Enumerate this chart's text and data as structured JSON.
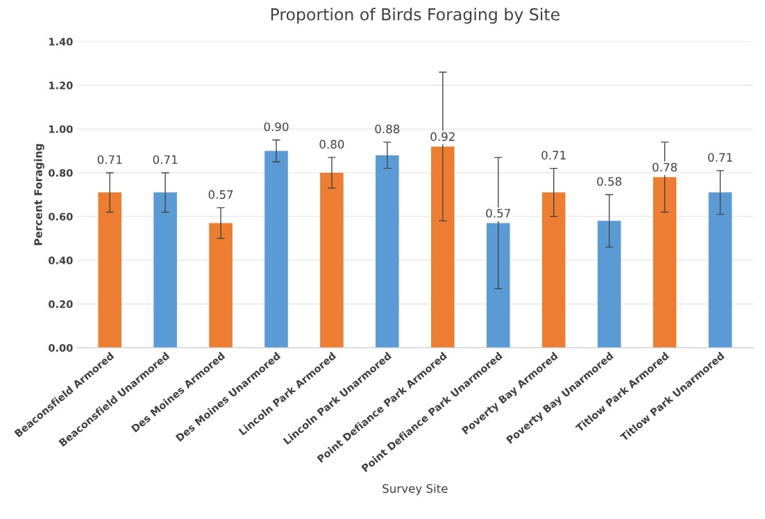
{
  "chart_data": {
    "type": "bar",
    "title": "Proportion of Birds Foraging by Site",
    "xlabel": "Survey Site",
    "ylabel": "Percent Foraging",
    "categories": [
      "Beaconsfield Armored",
      "Beaconsfield Unarmored",
      "Des Moines Armored",
      "Des Moines Unarmored",
      "Lincoln Park Armored",
      "Lincoln Park Unarmored",
      "Point Defiance Park Armored",
      "Point Defiance Park Unarmored",
      "Poverty Bay Armored",
      "Poverty Bay Unarmored",
      "Titlow Park Armored",
      "Titlow Park Unarmored"
    ],
    "values": [
      0.71,
      0.71,
      0.57,
      0.9,
      0.8,
      0.88,
      0.92,
      0.57,
      0.71,
      0.58,
      0.78,
      0.71
    ],
    "value_labels": [
      "0.71",
      "0.71",
      "0.57",
      "0.90",
      "0.80",
      "0.88",
      "0.92",
      "0.57",
      "0.71",
      "0.58",
      "0.78",
      "0.71"
    ],
    "errors": [
      0.09,
      0.09,
      0.07,
      0.05,
      0.07,
      0.06,
      0.34,
      0.3,
      0.11,
      0.12,
      0.16,
      0.1
    ],
    "colors": [
      "#ed7d31",
      "#5b9bd5",
      "#ed7d31",
      "#5b9bd5",
      "#ed7d31",
      "#5b9bd5",
      "#ed7d31",
      "#5b9bd5",
      "#ed7d31",
      "#5b9bd5",
      "#ed7d31",
      "#5b9bd5"
    ],
    "ylim": [
      0,
      1.4
    ],
    "yticks": [
      {
        "value": 0,
        "label": "0.00"
      },
      {
        "value": 0.2,
        "label": "0.20"
      },
      {
        "value": 0.4,
        "label": "0.40"
      },
      {
        "value": 0.6,
        "label": "0.60"
      },
      {
        "value": 0.8,
        "label": "0.80"
      },
      {
        "value": 1.0,
        "label": "1.00"
      },
      {
        "value": 1.2,
        "label": "1.20"
      },
      {
        "value": 1.4,
        "label": "1.40"
      }
    ],
    "grid": "y"
  }
}
